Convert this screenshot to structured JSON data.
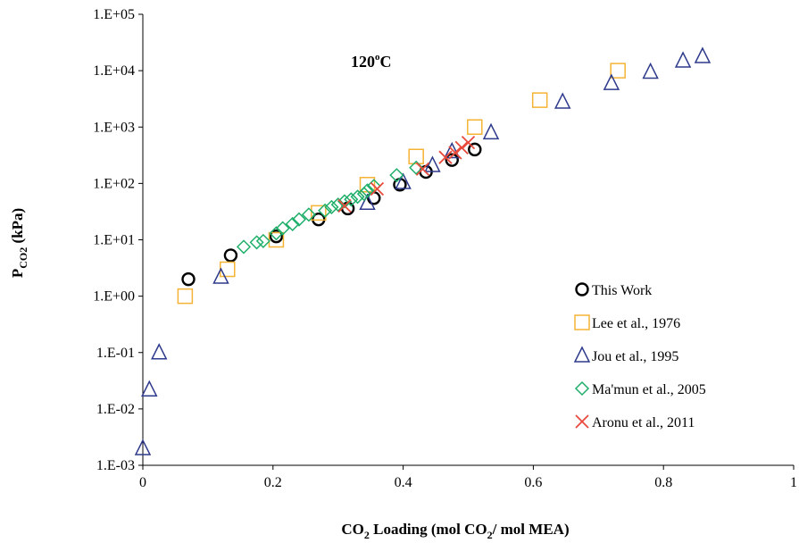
{
  "chart_data": {
    "type": "scatter",
    "title": "",
    "annotation": {
      "main": "120",
      "sup": "o",
      "tail": "C"
    },
    "xlabel": {
      "pre": "CO",
      "sub": "2",
      "mid": " Loading (mol CO",
      "sub2": "2",
      "post": "/ mol MEA)"
    },
    "ylabel": {
      "pre": "P",
      "sub": "CO2",
      "post": " (kPa)"
    },
    "xlim": [
      0,
      1
    ],
    "ylim": [
      0.001,
      100000
    ],
    "yscale": "log",
    "grid": false,
    "legend_position": "lower-right",
    "x_ticks": [
      "0",
      "0.2",
      "0.4",
      "0.6",
      "0.8",
      "1"
    ],
    "x_tick_values": [
      0,
      0.2,
      0.4,
      0.6,
      0.8,
      1.0
    ],
    "y_ticks": [
      "1.E-03",
      "1.E-02",
      "1.E-01",
      "1.E+00",
      "1.E+01",
      "1.E+02",
      "1.E+03",
      "1.E+04",
      "1.E+05"
    ],
    "y_tick_values": [
      0.001,
      0.01,
      0.1,
      1,
      10,
      100,
      1000,
      10000,
      100000
    ],
    "series": [
      {
        "name": "This Work",
        "marker": "circle",
        "color": "#000000",
        "points": [
          [
            0.07,
            2.0
          ],
          [
            0.135,
            5.3
          ],
          [
            0.205,
            11.5
          ],
          [
            0.27,
            23
          ],
          [
            0.315,
            36
          ],
          [
            0.355,
            55
          ],
          [
            0.395,
            95
          ],
          [
            0.435,
            160
          ],
          [
            0.475,
            260
          ],
          [
            0.51,
            400
          ]
        ]
      },
      {
        "name": "Lee et al., 1976",
        "marker": "square",
        "color": "#F5B335",
        "points": [
          [
            0.065,
            1.0
          ],
          [
            0.13,
            3.0
          ],
          [
            0.205,
            10
          ],
          [
            0.27,
            30
          ],
          [
            0.345,
            95
          ],
          [
            0.42,
            300
          ],
          [
            0.51,
            1000
          ],
          [
            0.61,
            3000
          ],
          [
            0.73,
            10000
          ]
        ]
      },
      {
        "name": "Jou et al., 1995",
        "marker": "triangle",
        "color": "#2E3A8C",
        "points": [
          [
            0.0,
            0.002
          ],
          [
            0.01,
            0.022
          ],
          [
            0.025,
            0.1
          ],
          [
            0.12,
            2.2
          ],
          [
            0.345,
            45
          ],
          [
            0.4,
            105
          ],
          [
            0.445,
            210
          ],
          [
            0.475,
            370
          ],
          [
            0.535,
            800
          ],
          [
            0.645,
            2800
          ],
          [
            0.72,
            6000
          ],
          [
            0.78,
            9500
          ],
          [
            0.83,
            15000
          ],
          [
            0.86,
            18000
          ]
        ]
      },
      {
        "name": "Ma'mun et al., 2005",
        "marker": "diamond",
        "color": "#1FAF6A",
        "points": [
          [
            0.155,
            7.5
          ],
          [
            0.175,
            9
          ],
          [
            0.185,
            9.5
          ],
          [
            0.205,
            13
          ],
          [
            0.215,
            16
          ],
          [
            0.23,
            19
          ],
          [
            0.24,
            23
          ],
          [
            0.255,
            28
          ],
          [
            0.28,
            33
          ],
          [
            0.29,
            38
          ],
          [
            0.3,
            42
          ],
          [
            0.31,
            48
          ],
          [
            0.32,
            52
          ],
          [
            0.33,
            58
          ],
          [
            0.34,
            65
          ],
          [
            0.345,
            75
          ],
          [
            0.355,
            90
          ],
          [
            0.39,
            140
          ],
          [
            0.42,
            190
          ]
        ]
      },
      {
        "name": "Aronu et al., 2011",
        "marker": "cross",
        "color": "#E84A3C",
        "points": [
          [
            0.31,
            40
          ],
          [
            0.36,
            80
          ],
          [
            0.43,
            180
          ],
          [
            0.465,
            290
          ],
          [
            0.48,
            350
          ],
          [
            0.49,
            430
          ],
          [
            0.5,
            530
          ]
        ]
      }
    ]
  }
}
